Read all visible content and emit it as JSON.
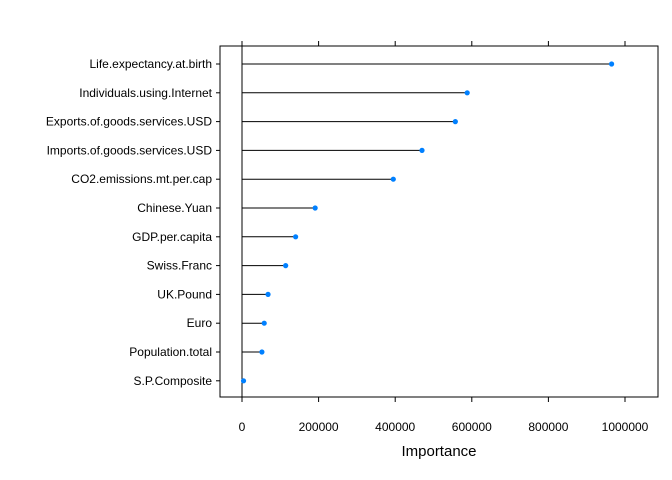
{
  "chart_data": {
    "type": "dotplot",
    "xlabel": "Importance",
    "xlim": [
      -60000,
      1040000
    ],
    "xticks": [
      0,
      200000,
      400000,
      600000,
      800000,
      1000000
    ],
    "xtick_labels": [
      "0",
      "200000",
      "400000",
      "600000",
      "800000",
      "1000000"
    ],
    "grid": false,
    "point_color": "#0080FF",
    "features": [
      {
        "name": "Life.expectancy.at.birth",
        "value": 965000
      },
      {
        "name": "Individuals.using.Internet",
        "value": 588000
      },
      {
        "name": "Exports.of.goods.services.USD",
        "value": 557000
      },
      {
        "name": "Imports.of.goods.services.USD",
        "value": 470000
      },
      {
        "name": "CO2.emissions.mt.per.cap",
        "value": 395000
      },
      {
        "name": "Chinese.Yuan",
        "value": 191000
      },
      {
        "name": "GDP.per.capita",
        "value": 140000
      },
      {
        "name": "Swiss.Franc",
        "value": 114000
      },
      {
        "name": "UK.Pound",
        "value": 68000
      },
      {
        "name": "Euro",
        "value": 58000
      },
      {
        "name": "Population.total",
        "value": 52000
      },
      {
        "name": "S.P.Composite",
        "value": 4000
      }
    ]
  }
}
